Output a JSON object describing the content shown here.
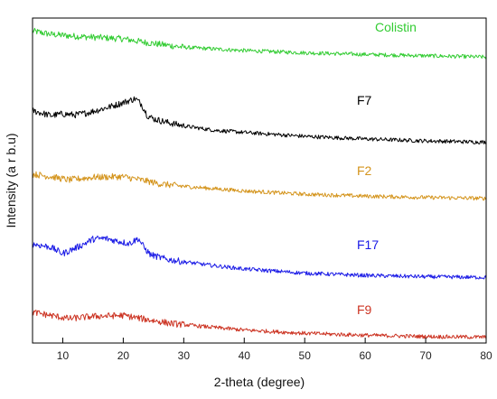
{
  "chart_data": {
    "type": "line",
    "xlabel": "2-theta (degree)",
    "ylabel": "Intensity (a r b.u)",
    "xlim": [
      5,
      80
    ],
    "xticks": [
      10,
      20,
      30,
      40,
      50,
      60,
      70,
      80
    ],
    "y_tick_labels": false,
    "grid": false,
    "legend": "inline labels at right",
    "series": [
      {
        "name": "Colistin",
        "color": "#33cc33",
        "x": [
          5,
          8,
          12,
          16,
          20,
          24,
          30,
          40,
          50,
          60,
          70,
          80
        ],
        "y": [
          0.96,
          0.95,
          0.944,
          0.94,
          0.936,
          0.924,
          0.91,
          0.9,
          0.893,
          0.888,
          0.884,
          0.88
        ]
      },
      {
        "name": "F7",
        "color": "#000000",
        "x": [
          5,
          8,
          10,
          12,
          14,
          16,
          18,
          20,
          22,
          23,
          24,
          25,
          27,
          30,
          35,
          40,
          50,
          60,
          70,
          80
        ],
        "y": [
          0.715,
          0.7,
          0.705,
          0.702,
          0.708,
          0.718,
          0.728,
          0.74,
          0.752,
          0.735,
          0.7,
          0.69,
          0.68,
          0.668,
          0.655,
          0.648,
          0.636,
          0.628,
          0.622,
          0.618
        ]
      },
      {
        "name": "F2",
        "color": "#d4941c",
        "x": [
          5,
          8,
          11,
          15,
          20,
          24,
          26,
          30,
          40,
          50,
          60,
          70,
          80
        ],
        "y": [
          0.52,
          0.512,
          0.502,
          0.51,
          0.512,
          0.498,
          0.49,
          0.482,
          0.468,
          0.458,
          0.452,
          0.448,
          0.445
        ]
      },
      {
        "name": "F17",
        "color": "#1a1ae6",
        "x": [
          5,
          8,
          10,
          13,
          15,
          17,
          19,
          21,
          22.5,
          23.5,
          24.5,
          27,
          30,
          35,
          40,
          50,
          60,
          70,
          80
        ],
        "y": [
          0.305,
          0.295,
          0.275,
          0.3,
          0.32,
          0.322,
          0.314,
          0.306,
          0.322,
          0.292,
          0.272,
          0.258,
          0.25,
          0.238,
          0.228,
          0.215,
          0.208,
          0.204,
          0.202
        ]
      },
      {
        "name": "F9",
        "color": "#cc3322",
        "x": [
          5,
          8,
          11,
          15,
          20,
          24,
          28,
          35,
          40,
          50,
          60,
          70,
          80
        ],
        "y": [
          0.095,
          0.085,
          0.075,
          0.082,
          0.085,
          0.072,
          0.06,
          0.048,
          0.04,
          0.03,
          0.024,
          0.02,
          0.018
        ]
      }
    ]
  }
}
